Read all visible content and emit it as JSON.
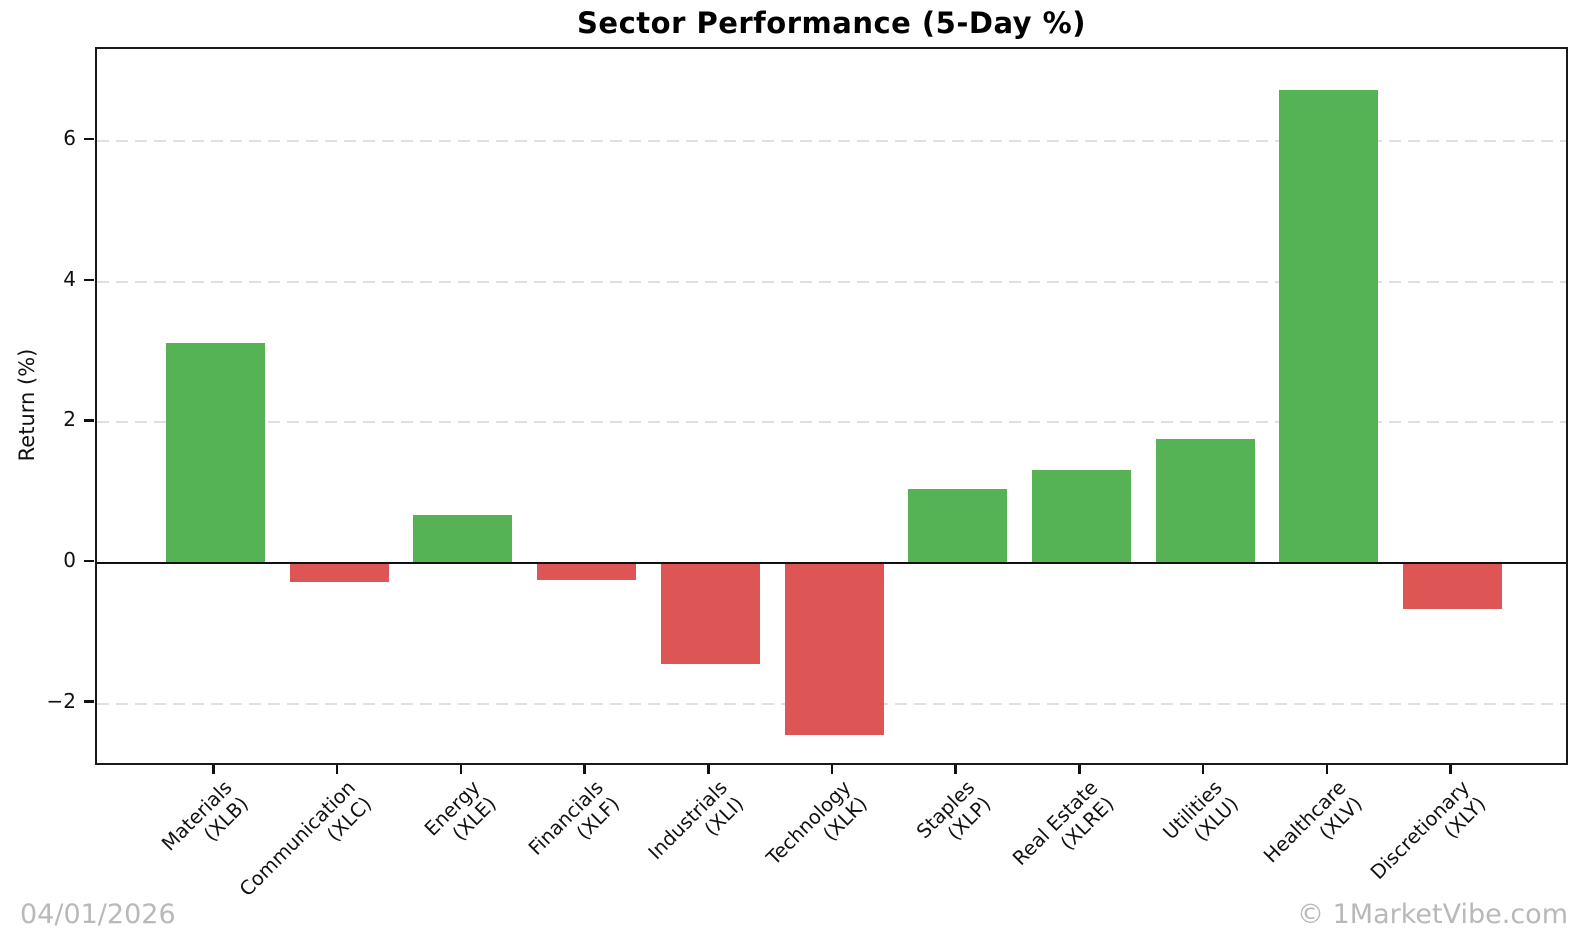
{
  "title": "Sector Performance (5-Day %)",
  "y_axis": {
    "label": "Return (%)",
    "ticks": [
      "−2",
      "0",
      "2",
      "4",
      "6"
    ]
  },
  "footer": {
    "date": "04/01/2026",
    "copyright": "© 1MarketVibe.com"
  },
  "colors": {
    "positive": "#55b355",
    "negative": "#dd5555",
    "grid": "#e0e0e0",
    "axis": "#1a1a1a",
    "watermark": "#b9b9b9"
  },
  "chart_data": {
    "type": "bar",
    "title": "Sector Performance (5-Day %)",
    "xlabel": "",
    "ylabel": "Return (%)",
    "categories": [
      "Materials (XLB)",
      "Communication (XLC)",
      "Energy (XLE)",
      "Financials (XLF)",
      "Industrials (XLI)",
      "Technology (XLK)",
      "Staples (XLP)",
      "Real Estate (XLRE)",
      "Utilities (XLU)",
      "Healthcare (XLV)",
      "Discretionary (XLY)"
    ],
    "values": [
      3.13,
      -0.27,
      0.68,
      -0.24,
      -1.43,
      -2.45,
      1.06,
      1.33,
      1.77,
      6.72,
      -0.65
    ],
    "sectors": [
      {
        "name": "Materials",
        "ticker": "(XLB)",
        "value": 3.13
      },
      {
        "name": "Communication",
        "ticker": "(XLC)",
        "value": -0.27
      },
      {
        "name": "Energy",
        "ticker": "(XLE)",
        "value": 0.68
      },
      {
        "name": "Financials",
        "ticker": "(XLF)",
        "value": -0.24
      },
      {
        "name": "Industrials",
        "ticker": "(XLI)",
        "value": -1.43
      },
      {
        "name": "Technology",
        "ticker": "(XLK)",
        "value": -2.45
      },
      {
        "name": "Staples",
        "ticker": "(XLP)",
        "value": 1.06
      },
      {
        "name": "Real Estate",
        "ticker": "(XLRE)",
        "value": 1.33
      },
      {
        "name": "Utilities",
        "ticker": "(XLU)",
        "value": 1.77
      },
      {
        "name": "Healthcare",
        "ticker": "(XLV)",
        "value": 6.72
      },
      {
        "name": "Discretionary",
        "ticker": "(XLY)",
        "value": -0.65
      }
    ],
    "ylim": [
      -2.9,
      7.31
    ],
    "yticks": [
      -2,
      0,
      2,
      4,
      6
    ],
    "grid": "horizontal-dashed",
    "legend": "none",
    "bar_color_rule": "green if value >= 0 else red"
  }
}
